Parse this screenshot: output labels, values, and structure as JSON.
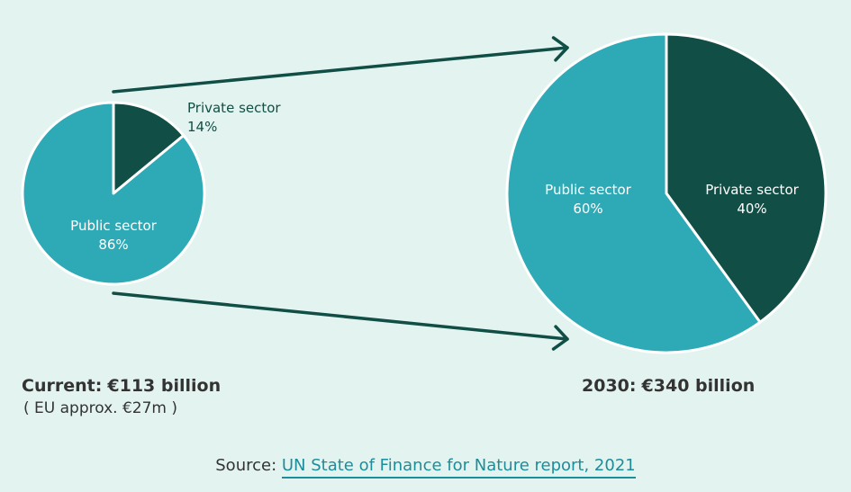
{
  "colors": {
    "public": "#2daab6",
    "private": "#114e45",
    "arrow": "#114e45",
    "background": "#e3f4f0"
  },
  "chart_data": [
    {
      "type": "pie",
      "title": "",
      "slices": [
        {
          "label": "Private sector",
          "value": 14,
          "value_label": "14%"
        },
        {
          "label": "Public sector",
          "value": 86,
          "value_label": "86%"
        }
      ],
      "caption_label": "Current",
      "caption_value": "€113 billion",
      "subcaption": "( EU approx. €27m )"
    },
    {
      "type": "pie",
      "title": "",
      "slices": [
        {
          "label": "Private sector",
          "value": 40,
          "value_label": "40%"
        },
        {
          "label": "Public sector",
          "value": 60,
          "value_label": "60%"
        }
      ],
      "caption_label": "2030",
      "caption_value": "€340 billion"
    }
  ],
  "source": {
    "prefix": "Source:",
    "link_text": "UN State of Finance for Nature report, 2021"
  }
}
